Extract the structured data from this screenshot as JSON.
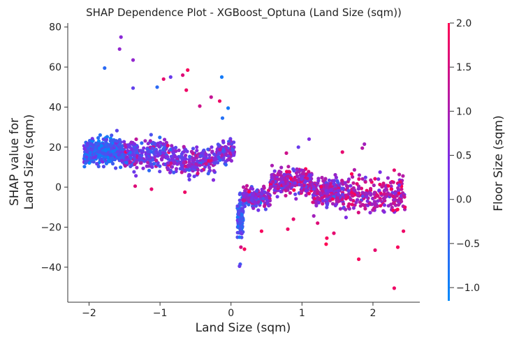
{
  "chart_data": {
    "type": "scatter",
    "title": "SHAP Dependence Plot - XGBoost_Optuna (Land Size (sqm))",
    "xlabel": "Land Size (sqm)",
    "ylabel": [
      "SHAP value for",
      "Land Size (sqm)"
    ],
    "colorbar_label": "Floor Size (sqm)",
    "xlim": [
      -2.3,
      2.66
    ],
    "ylim": [
      -57.5,
      82
    ],
    "x_ticks": [
      -2,
      -1,
      0,
      1,
      2
    ],
    "x_tick_labels": [
      "−2",
      "−1",
      "0",
      "1",
      "2"
    ],
    "y_ticks": [
      -40,
      -20,
      0,
      20,
      40,
      60,
      80
    ],
    "y_tick_labels": [
      "−40",
      "−20",
      "0",
      "20",
      "40",
      "60",
      "80"
    ],
    "colorbar_range": [
      -1.15,
      2.0
    ],
    "colorbar_ticks": [
      -1.0,
      -0.5,
      0.0,
      0.5,
      1.0,
      1.5,
      2.0
    ],
    "colorbar_tick_labels": [
      "−1.0",
      "−0.5",
      "0.0",
      "0.5",
      "1.0",
      "1.5",
      "2.0"
    ],
    "colormap": [
      "#008afb",
      "#7b2ee8",
      "#ff0052"
    ],
    "grid": false,
    "notable_points": [
      {
        "x": -1.55,
        "y": 75,
        "c": 0.6
      },
      {
        "x": -1.57,
        "y": 69,
        "c": 0.7
      },
      {
        "x": -1.38,
        "y": 63.5,
        "c": 0.7
      },
      {
        "x": -1.78,
        "y": 59.5,
        "c": -0.6
      },
      {
        "x": -1.38,
        "y": 49.5,
        "c": 0.1
      },
      {
        "x": -1.04,
        "y": 50,
        "c": -0.6
      },
      {
        "x": -0.95,
        "y": 54,
        "c": 1.7
      },
      {
        "x": -0.68,
        "y": 56,
        "c": 1.6
      },
      {
        "x": -0.61,
        "y": 58.5,
        "c": 1.9
      },
      {
        "x": -0.63,
        "y": 48.5,
        "c": 1.8
      },
      {
        "x": -0.85,
        "y": 55,
        "c": 0.2
      },
      {
        "x": -0.28,
        "y": 45,
        "c": 1.3
      },
      {
        "x": -0.16,
        "y": 43,
        "c": 1.8
      },
      {
        "x": -0.44,
        "y": 40.5,
        "c": 1.4
      },
      {
        "x": -0.13,
        "y": 55,
        "c": -0.9
      },
      {
        "x": -0.04,
        "y": 39.5,
        "c": -0.9
      },
      {
        "x": -0.12,
        "y": 34.5,
        "c": -0.7
      },
      {
        "x": -0.65,
        "y": -2.5,
        "c": 1.8
      },
      {
        "x": -1.35,
        "y": 0.5,
        "c": 1.6
      },
      {
        "x": -1.12,
        "y": -1,
        "c": 1.7
      },
      {
        "x": 0.13,
        "y": -38.5,
        "c": -0.3
      },
      {
        "x": 0.12,
        "y": -39.5,
        "c": 0.2
      },
      {
        "x": 0.14,
        "y": -30,
        "c": 1.5
      },
      {
        "x": 0.19,
        "y": -31,
        "c": 1.9
      },
      {
        "x": 0.12,
        "y": -25,
        "c": -0.8
      },
      {
        "x": 0.43,
        "y": -22,
        "c": 1.9
      },
      {
        "x": 0.8,
        "y": -21,
        "c": 1.8
      },
      {
        "x": 0.88,
        "y": -16,
        "c": 1.7
      },
      {
        "x": 1.22,
        "y": -18,
        "c": 1.6
      },
      {
        "x": 1.35,
        "y": -25.5,
        "c": 1.9
      },
      {
        "x": 1.34,
        "y": -28.5,
        "c": 2.0
      },
      {
        "x": 1.45,
        "y": -23,
        "c": 1.7
      },
      {
        "x": 1.8,
        "y": -36,
        "c": 1.9
      },
      {
        "x": 2.03,
        "y": -31.5,
        "c": 1.7
      },
      {
        "x": 2.3,
        "y": -50.5,
        "c": 1.8
      },
      {
        "x": 2.35,
        "y": -30,
        "c": 1.9
      },
      {
        "x": 2.43,
        "y": -22,
        "c": 1.8
      },
      {
        "x": 1.85,
        "y": 19.5,
        "c": 1.1
      },
      {
        "x": 1.88,
        "y": 21.5,
        "c": 0.9
      },
      {
        "x": 1.57,
        "y": 17.5,
        "c": 1.7
      },
      {
        "x": 0.95,
        "y": 20,
        "c": 0.2
      },
      {
        "x": 1.1,
        "y": 24,
        "c": 0.5
      },
      {
        "x": 0.78,
        "y": 17,
        "c": 1.4
      },
      {
        "x": 2.1,
        "y": 7.5,
        "c": 0.4
      },
      {
        "x": 2.37,
        "y": 1,
        "c": 0.3
      },
      {
        "x": 2.45,
        "y": -10,
        "c": 1.8
      }
    ],
    "clusters": [
      {
        "x_range": [
          -2.07,
          -1.5
        ],
        "y_mean": 17.5,
        "y_spread": 6,
        "count": 380,
        "c_mean": -0.4,
        "c_spread": 0.8
      },
      {
        "x_range": [
          -1.5,
          -0.9
        ],
        "y_mean": 16.5,
        "y_spread": 6,
        "count": 230,
        "c_mean": 0.3,
        "c_spread": 0.9
      },
      {
        "x_range": [
          -0.9,
          -0.2
        ],
        "y_mean": 13,
        "y_spread": 6,
        "count": 230,
        "c_mean": 0.5,
        "c_spread": 0.9
      },
      {
        "x_range": [
          -0.2,
          0.05
        ],
        "y_mean": 18,
        "y_spread": 5,
        "count": 100,
        "c_mean": 0.4,
        "c_spread": 0.9
      },
      {
        "x_range": [
          0.09,
          0.17
        ],
        "y_mean": -16,
        "y_spread": 9,
        "count": 110,
        "c_mean": -0.3,
        "c_spread": 0.8
      },
      {
        "x_range": [
          0.17,
          0.55
        ],
        "y_mean": -5,
        "y_spread": 4,
        "count": 180,
        "c_mean": 0.6,
        "c_spread": 0.9
      },
      {
        "x_range": [
          0.55,
          1.15
        ],
        "y_mean": 3,
        "y_spread": 6,
        "count": 260,
        "c_mean": 0.9,
        "c_spread": 0.8
      },
      {
        "x_range": [
          1.15,
          1.6
        ],
        "y_mean": -3,
        "y_spread": 7,
        "count": 220,
        "c_mean": 0.9,
        "c_spread": 0.8
      },
      {
        "x_range": [
          1.6,
          2.45
        ],
        "y_mean": -4,
        "y_spread": 8,
        "count": 220,
        "c_mean": 1.1,
        "c_spread": 0.8
      }
    ]
  }
}
